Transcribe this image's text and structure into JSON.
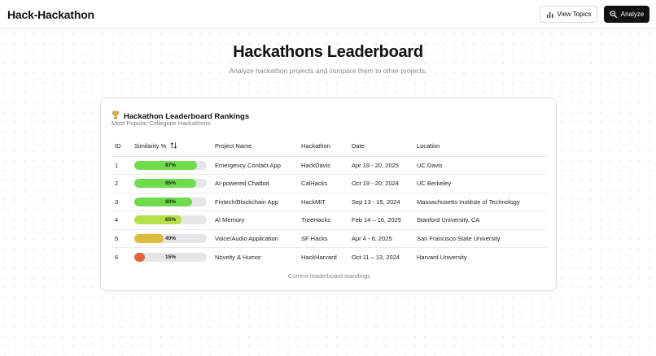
{
  "app": {
    "brand": "Hack-Hackathon"
  },
  "toolbar": {
    "view_topics_label": "View Topics",
    "view_topics_icon": "bar-chart-icon",
    "analyze_label": "Analyze",
    "analyze_icon": "search-icon"
  },
  "hero": {
    "title": "Hackathons Leaderboard",
    "subtitle": "Analyze hackathon projects and compare them to other projects."
  },
  "card": {
    "icon": "trophy-icon",
    "title": "Hackathon Leaderboard Rankings",
    "subtitle": "Most Popular Collegiate Hackathons",
    "footer": "Current leaderboard standings"
  },
  "table": {
    "columns": {
      "id": "ID",
      "similarity": "Similarity %",
      "project": "Project Name",
      "hackathon": "Hackathon",
      "date": "Date",
      "location": "Location"
    },
    "sort_icon": "sort-arrows-icon",
    "rows": [
      {
        "id": "1",
        "similarity": 87,
        "similarity_label": "87%",
        "color": "#6fdc4d",
        "project": "Emergency Contact App",
        "hackathon": "HackDavis",
        "date": "Apr 19 - 20, 2025",
        "location": "UC Davis"
      },
      {
        "id": "2",
        "similarity": 85,
        "similarity_label": "85%",
        "color": "#6fdc4d",
        "project": "AI-powered Chatbot",
        "hackathon": "CalHacks",
        "date": "Oct 19 - 20, 2024",
        "location": "UC Berkeley"
      },
      {
        "id": "3",
        "similarity": 80,
        "similarity_label": "80%",
        "color": "#6fdc4d",
        "project": "Fintech/Blockchain App",
        "hackathon": "HackMIT",
        "date": "Sep 13 - 15, 2024",
        "location": "Massachusetts Institute of Technology"
      },
      {
        "id": "4",
        "similarity": 65,
        "similarity_label": "65%",
        "color": "#b4e04a",
        "project": "AI Memory",
        "hackathon": "TreeHacks",
        "date": "Feb 14 – 16, 2025",
        "location": "Stanford University, CA"
      },
      {
        "id": "5",
        "similarity": 40,
        "similarity_label": "40%",
        "color": "#dcbc3c",
        "project": "Voice/Audio Application",
        "hackathon": "SF Hacks",
        "date": "Apr 4 - 6, 2025",
        "location": "San Francisco State University"
      },
      {
        "id": "6",
        "similarity": 15,
        "similarity_label": "15%",
        "color": "#e0653a",
        "project": "Novelty & Humor",
        "hackathon": "HackHarvard",
        "date": "Oct 11 – 13, 2024",
        "location": "Harvard University"
      }
    ]
  }
}
